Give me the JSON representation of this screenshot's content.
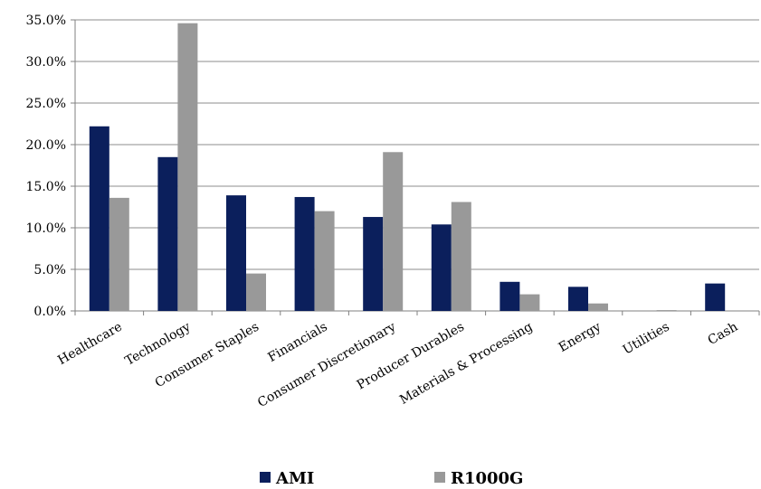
{
  "chart_data": {
    "type": "bar",
    "categories": [
      "Healthcare",
      "Technology",
      "Consumer Staples",
      "Financials",
      "Consumer Discretionary",
      "Producer Durables",
      "Materials & Processing",
      "Energy",
      "Utilities",
      "Cash"
    ],
    "series": [
      {
        "name": "AMI",
        "color": "#0b1f5c",
        "values": [
          22.2,
          18.5,
          13.9,
          13.7,
          11.3,
          10.4,
          3.5,
          2.9,
          0.0,
          3.3
        ]
      },
      {
        "name": "R1000G",
        "color": "#999999",
        "values": [
          13.6,
          34.6,
          4.5,
          12.0,
          19.1,
          13.1,
          2.0,
          0.9,
          0.1,
          0.0
        ]
      }
    ],
    "yticks": [
      "0.0%",
      "5.0%",
      "10.0%",
      "15.0%",
      "20.0%",
      "25.0%",
      "30.0%",
      "35.0%"
    ],
    "ylim": [
      0,
      35
    ],
    "title": "",
    "xlabel": "",
    "ylabel": "",
    "grid": true,
    "legend_position": "bottom"
  }
}
